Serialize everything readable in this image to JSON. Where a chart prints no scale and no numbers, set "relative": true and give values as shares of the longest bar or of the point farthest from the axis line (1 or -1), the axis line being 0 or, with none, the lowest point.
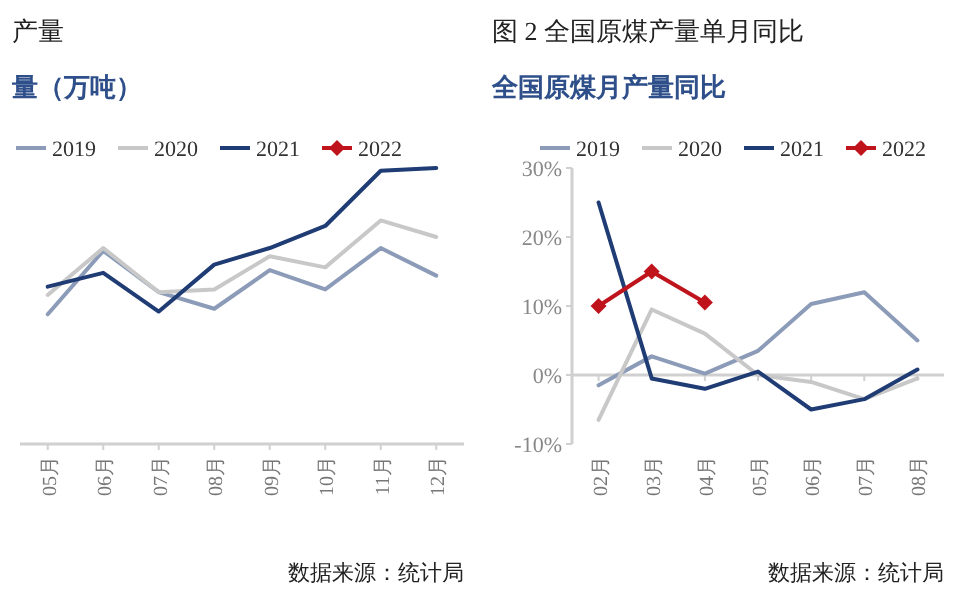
{
  "chart_data": [
    {
      "type": "line",
      "title": "产量",
      "subtitle": "量（万吨）",
      "relative": true,
      "legend": "top",
      "categories": [
        "05月",
        "06月",
        "07月",
        "08月",
        "09月",
        "10月",
        "11月",
        "12月"
      ],
      "series": [
        {
          "name": "2019",
          "color": "#8c9cb8",
          "values": [
            0.47,
            0.7,
            0.55,
            0.49,
            0.63,
            0.56,
            0.71,
            0.61
          ]
        },
        {
          "name": "2020",
          "color": "#c8c8c8",
          "values": [
            0.54,
            0.71,
            0.55,
            0.56,
            0.68,
            0.64,
            0.81,
            0.75
          ]
        },
        {
          "name": "2021",
          "color": "#1f3c74",
          "values": [
            0.57,
            0.62,
            0.48,
            0.65,
            0.71,
            0.79,
            0.99,
            1.0
          ]
        },
        {
          "name": "2022",
          "color": "#c0141c",
          "marker": "diamond",
          "values": [
            null,
            null,
            null,
            null,
            null,
            null,
            null,
            null
          ]
        }
      ],
      "annotations": [
        "数据来源：统计局"
      ]
    },
    {
      "type": "line",
      "title": "图 2 全国原煤产量单月同比",
      "subtitle": "全国原煤月产量同比",
      "legend": "top",
      "categories": [
        "02月",
        "03月",
        "04月",
        "05月",
        "06月",
        "07月",
        "08月"
      ],
      "ylim": [
        -10,
        30
      ],
      "yticks": [
        {
          "value": -10,
          "label": "-10%"
        },
        {
          "value": 0,
          "label": "0%"
        },
        {
          "value": 10,
          "label": "10%"
        },
        {
          "value": 20,
          "label": "20%"
        },
        {
          "value": 30,
          "label": "30%"
        }
      ],
      "series": [
        {
          "name": "2019",
          "color": "#8c9cb8",
          "values": [
            -1.5,
            2.7,
            0.2,
            3.5,
            10.3,
            12,
            5
          ]
        },
        {
          "name": "2020",
          "color": "#c8c8c8",
          "values": [
            -6.5,
            9.5,
            6,
            0,
            -1,
            -3.5,
            -0.5
          ]
        },
        {
          "name": "2021",
          "color": "#1f3c74",
          "values": [
            25,
            -0.5,
            -2,
            0.5,
            -5,
            -3.5,
            0.8
          ]
        },
        {
          "name": "2022",
          "color": "#c0141c",
          "marker": "diamond",
          "values": [
            10,
            15,
            10.5,
            null,
            null,
            null,
            null
          ]
        }
      ],
      "annotations": [
        "数据来源：统计局"
      ]
    }
  ]
}
